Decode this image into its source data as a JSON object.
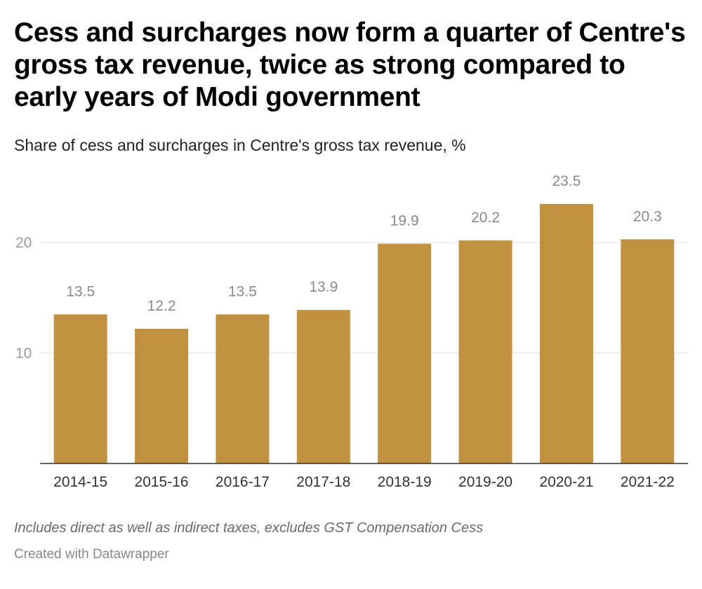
{
  "title": "Cess and surcharges now form a quarter of Centre's gross tax revenue, twice as strong compared to early years of Modi government",
  "subtitle": "Share of cess and surcharges in Centre's gross tax revenue, %",
  "note": "Includes direct as well as indirect taxes, excludes GST Compensation Cess",
  "credit": "Created with Datawrapper",
  "chart_data": {
    "type": "bar",
    "categories": [
      "2014-15",
      "2015-16",
      "2016-17",
      "2017-18",
      "2018-19",
      "2019-20",
      "2020-21",
      "2021-22"
    ],
    "values": [
      13.5,
      12.2,
      13.5,
      13.9,
      19.9,
      20.2,
      23.5,
      20.3
    ],
    "value_labels": [
      "13.5",
      "12.2",
      "13.5",
      "13.9",
      "19.9",
      "20.2",
      "23.5",
      "20.3"
    ],
    "yticks": [
      10,
      20
    ],
    "ylim": [
      0,
      23.5
    ],
    "grid": true,
    "bar_color": "#bf9140",
    "title": "Cess and surcharges now form a quarter of Centre's gross tax revenue, twice as strong compared to early years of Modi government",
    "xlabel": "",
    "ylabel": ""
  }
}
